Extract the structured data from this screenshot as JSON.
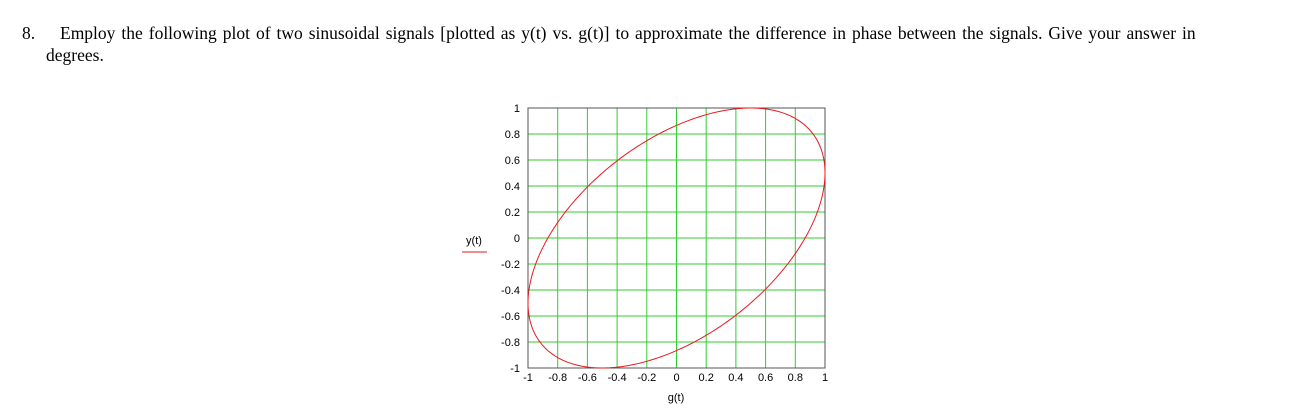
{
  "question": {
    "number": "8.",
    "line1": "Employ the following plot of two sinusoidal signals [plotted as y(t) vs. g(t)] to approximate the difference in phase between the signals. Give your answer in",
    "line2": "degrees."
  },
  "chart_data": {
    "type": "line",
    "title": "",
    "xlabel": "g(t)",
    "ylabel": "y(t)",
    "xlim": [
      -1,
      1
    ],
    "ylim": [
      -1,
      1
    ],
    "x_ticks": [
      "-1",
      "-0.8",
      "-0.6",
      "-0.4",
      "-0.2",
      "0",
      "0.2",
      "0.4",
      "0.6",
      "0.8",
      "1"
    ],
    "y_ticks": [
      "1",
      "0.8",
      "0.6",
      "0.4",
      "0.2",
      "0",
      "-0.2",
      "-0.4",
      "-0.6",
      "-0.8",
      "-1"
    ],
    "grid": true,
    "series": [
      {
        "amplitude_x": 1,
        "amplitude_y": 1,
        "phase_offset_deg": 60,
        "points_x": [
          1.0,
          0.866,
          0.5,
          0.0,
          -0.5,
          -0.866,
          -1.0,
          -0.866,
          -0.5,
          0.0,
          0.5,
          0.866,
          1.0
        ],
        "points_y": [
          0.5,
          0.866,
          1.0,
          0.866,
          0.5,
          0.0,
          -0.5,
          -0.866,
          -1.0,
          -0.866,
          -0.5,
          0.0,
          0.5
        ]
      }
    ],
    "colors": {
      "grid": "#33cc33",
      "curve": "#e8191f",
      "axis": "#555555",
      "ylabel_underline": "#e8191f"
    }
  }
}
